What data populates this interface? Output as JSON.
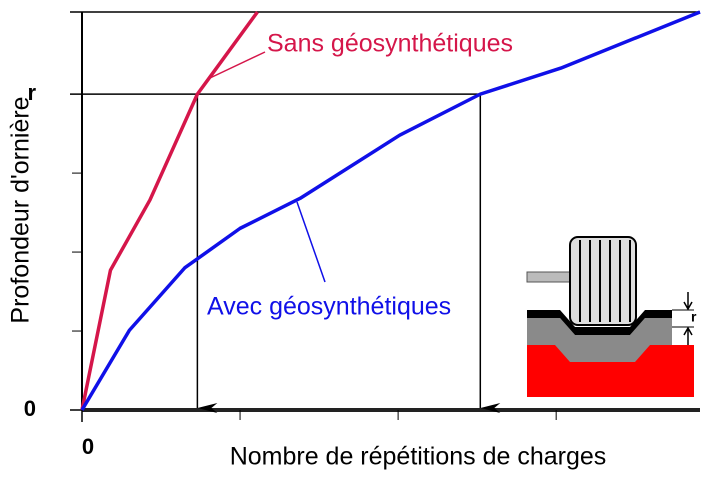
{
  "chart_data": {
    "type": "line",
    "xlabel": "Nombre de répétitions de charges",
    "ylabel": "Profondeur d'ornière",
    "xlim": [
      0,
      3.91
    ],
    "ylim": [
      0,
      5.04
    ],
    "xticks": [
      0
    ],
    "minor_xticks": [
      1,
      2,
      3
    ],
    "yticks": [
      {
        "value": 0,
        "label": "0"
      },
      {
        "value": 4,
        "label": "r"
      }
    ],
    "minor_yticks": [
      1,
      2,
      3
    ],
    "series": [
      {
        "name": "Sans géosynthétiques",
        "color": "#d5164a",
        "x": [
          0,
          0.18,
          0.43,
          0.73,
          0.84,
          1.11
        ],
        "values": [
          0,
          1.77,
          2.66,
          4,
          4.3,
          5.04
        ]
      },
      {
        "name": "Avec géosynthétiques",
        "color": "#1010e8",
        "x": [
          0,
          0.3,
          0.65,
          1,
          1.38,
          2.01,
          2.52,
          3.03,
          3.91
        ],
        "values": [
          0,
          1.01,
          1.8,
          2.3,
          2.68,
          3.48,
          4,
          4.33,
          5.04
        ]
      }
    ],
    "markers": [
      {
        "x": 0.73,
        "y": 4
      },
      {
        "x": 2.52,
        "y": 4
      }
    ],
    "inset_label": "r"
  }
}
